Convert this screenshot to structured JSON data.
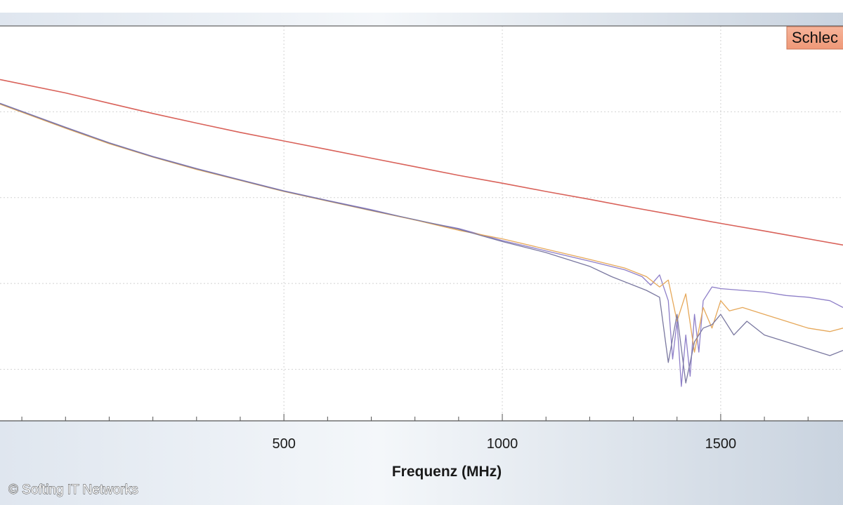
{
  "chart_data": {
    "type": "line",
    "xlabel": "Frequenz (MHz)",
    "ylabel": "",
    "title": "",
    "xlim": [
      -150,
      1780
    ],
    "ylim": [
      -115,
      0
    ],
    "x_ticks": [
      500,
      1000,
      1500
    ],
    "x_minor_step": 100,
    "y_grid": [
      -100,
      -75,
      -50,
      -25
    ],
    "grid": true,
    "legend": {
      "placement": "top-right",
      "entries": [
        "Schlec"
      ]
    },
    "series": [
      {
        "color": "#d9625a",
        "x": [
          -150,
          0,
          100,
          200,
          300,
          400,
          500,
          600,
          700,
          800,
          900,
          1000,
          1100,
          1200,
          1300,
          1400,
          1500,
          1600,
          1700,
          1780
        ],
        "y": [
          -15.6,
          -19.5,
          -22.5,
          -25.5,
          -28.3,
          -31.0,
          -33.5,
          -36.0,
          -38.5,
          -41.0,
          -43.5,
          -45.8,
          -48.2,
          -50.5,
          -52.9,
          -55.2,
          -57.5,
          -59.7,
          -62.0,
          -63.8
        ]
      },
      {
        "color": "#8e7fc8",
        "x": [
          -150,
          0,
          100,
          200,
          300,
          400,
          500,
          600,
          700,
          800,
          900,
          1000,
          1100,
          1200,
          1280,
          1320,
          1340,
          1360,
          1380,
          1390,
          1400,
          1410,
          1420,
          1430,
          1440,
          1450,
          1460,
          1480,
          1500,
          1550,
          1600,
          1650,
          1700,
          1750,
          1780
        ],
        "y": [
          -22.5,
          -29.5,
          -34.0,
          -38.0,
          -41.5,
          -44.8,
          -48.0,
          -50.8,
          -53.5,
          -56.5,
          -59.0,
          -62.5,
          -65.5,
          -68.5,
          -71.0,
          -73.0,
          -75.5,
          -72.5,
          -80.0,
          -97.0,
          -86.0,
          -105.0,
          -90.0,
          -102.0,
          -84.0,
          -95.0,
          -80.0,
          -76.0,
          -76.5,
          -77.0,
          -77.5,
          -78.5,
          -79.0,
          -80.0,
          -82.0
        ]
      },
      {
        "color": "#e6a85a",
        "x": [
          -150,
          0,
          100,
          200,
          300,
          400,
          500,
          600,
          700,
          800,
          900,
          1000,
          1100,
          1200,
          1280,
          1330,
          1360,
          1380,
          1400,
          1420,
          1440,
          1460,
          1480,
          1500,
          1520,
          1550,
          1600,
          1650,
          1700,
          1750,
          1780
        ],
        "y": [
          -22.8,
          -29.8,
          -34.3,
          -38.2,
          -41.8,
          -45.0,
          -48.2,
          -51.0,
          -53.8,
          -56.5,
          -59.5,
          -62.0,
          -65.0,
          -68.0,
          -70.5,
          -73.0,
          -76.0,
          -74.0,
          -86.0,
          -78.0,
          -95.0,
          -82.0,
          -88.0,
          -80.0,
          -83.0,
          -82.0,
          -84.0,
          -86.0,
          -88.0,
          -89.0,
          -88.0
        ]
      },
      {
        "color": "#7a78a0",
        "x": [
          -150,
          0,
          100,
          200,
          300,
          400,
          500,
          600,
          700,
          800,
          900,
          1000,
          1100,
          1200,
          1250,
          1300,
          1330,
          1360,
          1380,
          1400,
          1420,
          1440,
          1460,
          1480,
          1500,
          1530,
          1560,
          1600,
          1650,
          1700,
          1750,
          1780
        ],
        "y": [
          -22.6,
          -29.6,
          -34.1,
          -38.1,
          -41.6,
          -44.9,
          -48.1,
          -50.9,
          -53.7,
          -56.4,
          -59.2,
          -62.8,
          -66.0,
          -70.0,
          -73.0,
          -75.5,
          -77.0,
          -79.0,
          -98.0,
          -84.0,
          -104.0,
          -92.0,
          -88.0,
          -87.0,
          -84.0,
          -90.0,
          -86.0,
          -90.0,
          -92.0,
          -94.0,
          -96.0,
          -94.5
        ]
      }
    ]
  },
  "credit": "© Softing IT Networks"
}
